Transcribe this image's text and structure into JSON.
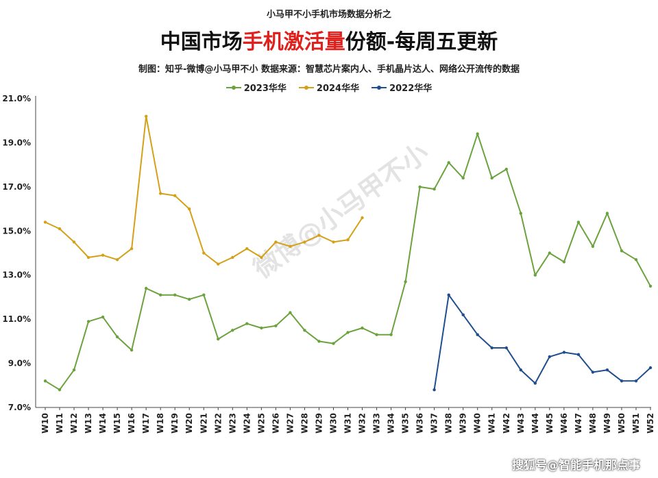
{
  "header": {
    "top_caption": "小马甲不小手机市场数据分析之",
    "title_prefix": "中国市场",
    "title_highlight": "手机激活量",
    "title_suffix": "份额-每周五更新",
    "credit": "制图：知乎-微博@小马甲不小   数据来源：智慧芯片案内人、手机晶片达人、网络公开流传的数据"
  },
  "footer": {
    "watermark": "搜狐号@智能手机那点事",
    "overlay_watermark": "微博@小马甲不小"
  },
  "colors": {
    "series_2023": "#6aa23c",
    "series_2024": "#d4a017",
    "series_2022": "#1f4e8c",
    "highlight": "#e0201c"
  },
  "chart_data": {
    "type": "line",
    "title": "中国市场手机激活量份额-每周五更新",
    "legend_position": "top-center",
    "grid": false,
    "ylim": [
      7.0,
      21.0
    ],
    "yticks": [
      "7.0%",
      "9.0%",
      "11.0%",
      "13.0%",
      "15.0%",
      "17.0%",
      "19.0%",
      "21.0%"
    ],
    "ytick_values": [
      7,
      9,
      11,
      13,
      15,
      17,
      19,
      21
    ],
    "categories": [
      "W10",
      "W11",
      "W12",
      "W13",
      "W14",
      "W15",
      "W16",
      "W17",
      "W18",
      "W19",
      "W20",
      "W21",
      "W22",
      "W23",
      "W24",
      "W25",
      "W26",
      "W27",
      "W28",
      "W29",
      "W30",
      "W31",
      "W32",
      "W33",
      "W34",
      "W35",
      "W36",
      "W37",
      "W38",
      "W39",
      "W40",
      "W41",
      "W42",
      "W43",
      "W44",
      "W45",
      "W46",
      "W47",
      "W48",
      "W49",
      "W50",
      "W51",
      "W52"
    ],
    "series": [
      {
        "name": "2023华华",
        "color_key": "series_2023",
        "values": [
          8.2,
          7.8,
          8.7,
          10.9,
          11.1,
          10.2,
          9.6,
          12.4,
          12.1,
          12.1,
          11.9,
          12.1,
          10.1,
          10.5,
          10.8,
          10.6,
          10.7,
          11.3,
          10.5,
          10.0,
          9.9,
          10.4,
          10.6,
          10.3,
          10.3,
          12.7,
          17.0,
          16.9,
          18.1,
          17.4,
          19.4,
          17.4,
          17.8,
          15.8,
          13.0,
          14.0,
          13.6,
          15.4,
          14.3,
          15.8,
          14.1,
          13.7,
          12.5
        ]
      },
      {
        "name": "2024华华",
        "color_key": "series_2024",
        "values": [
          15.4,
          15.1,
          14.5,
          13.8,
          13.9,
          13.7,
          14.2,
          20.2,
          16.7,
          16.6,
          16.0,
          14.0,
          13.5,
          13.8,
          14.2,
          13.8,
          14.5,
          14.3,
          14.5,
          14.8,
          14.5,
          14.6,
          15.6,
          null,
          null,
          null,
          null,
          null,
          null,
          null,
          null,
          null,
          null,
          null,
          null,
          null,
          null,
          null,
          null,
          null,
          null,
          null,
          null
        ]
      },
      {
        "name": "2022华华",
        "color_key": "series_2022",
        "values": [
          null,
          null,
          null,
          null,
          null,
          null,
          null,
          null,
          null,
          null,
          null,
          null,
          null,
          null,
          null,
          null,
          null,
          null,
          null,
          null,
          null,
          null,
          null,
          null,
          null,
          null,
          null,
          7.8,
          12.1,
          11.2,
          10.3,
          9.7,
          9.7,
          8.7,
          8.1,
          9.3,
          9.5,
          9.4,
          8.6,
          8.7,
          8.2,
          8.2,
          8.8
        ]
      }
    ]
  }
}
